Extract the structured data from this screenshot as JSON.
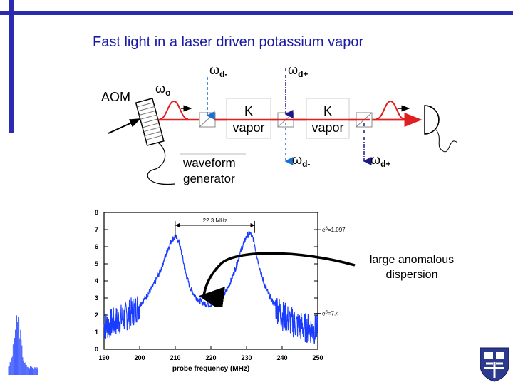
{
  "title": "Fast light in a laser driven potassium vapor",
  "diagram": {
    "aom_label": "AOM",
    "omega_o": "ω",
    "omega_o_sub": "o",
    "omega_d_minus": "ω",
    "omega_d_minus_sub": "d-",
    "omega_d_plus": "ω",
    "omega_d_plus_sub": "d+",
    "omega_d_minus_out": "ω",
    "omega_d_minus_out_sub": "d-",
    "omega_d_plus_out": "ω",
    "omega_d_plus_out_sub": "d+",
    "vapor_cell_1_line1": "K",
    "vapor_cell_1_line2": "vapor",
    "vapor_cell_2_line1": "K",
    "vapor_cell_2_line2": "vapor",
    "waveform_line1": "waveform",
    "waveform_line2": "generator",
    "colors": {
      "probe": "#e02020",
      "drive_minus": "#1e6fd0",
      "drive_plus": "#1a1a8c",
      "trace": "#1a3cff",
      "banner": "#2b2bb0"
    }
  },
  "chart_data": {
    "type": "line",
    "xlabel": "probe frequency (MHz)",
    "ylabel": "",
    "xlim": [
      190,
      250
    ],
    "ylim": [
      0,
      8
    ],
    "x_ticks": [
      "190",
      "200",
      "210",
      "220",
      "230",
      "240",
      "250"
    ],
    "y_ticks": [
      "0",
      "1",
      "2",
      "3",
      "4",
      "5",
      "6",
      "7",
      "8"
    ],
    "peak_separation_label": "22.3 MHz",
    "right_labels": [
      {
        "text": "e^{β}=1.097",
        "prefix": "e",
        "sup": "β",
        "suffix": "=1.097"
      },
      {
        "text": "e^{β}=7.4",
        "prefix": "e",
        "sup": "β",
        "suffix": "=7.4"
      }
    ],
    "series": [
      {
        "x": [
          190,
          192,
          194,
          196,
          198,
          200,
          202,
          204,
          205,
          206,
          207,
          208,
          209,
          210,
          211,
          212,
          213,
          214,
          215,
          216,
          217,
          218,
          219,
          220,
          221,
          222,
          223,
          224,
          225,
          226,
          227,
          228,
          229,
          230,
          231,
          232,
          233,
          234,
          235,
          236,
          237,
          238,
          239,
          240,
          242,
          244,
          246,
          248,
          250
        ],
        "values": [
          1.35,
          1.5,
          1.7,
          1.9,
          2.2,
          2.6,
          3.1,
          3.8,
          4.2,
          4.7,
          5.3,
          5.9,
          6.4,
          6.6,
          6.3,
          5.4,
          4.4,
          3.7,
          3.3,
          3.0,
          2.8,
          2.7,
          2.65,
          2.6,
          2.65,
          2.8,
          3.0,
          3.3,
          3.7,
          4.2,
          4.8,
          5.5,
          6.1,
          6.6,
          6.8,
          6.4,
          5.4,
          4.5,
          3.8,
          3.3,
          2.9,
          2.6,
          2.3,
          2.0,
          1.7,
          1.45,
          1.3,
          1.2,
          1.1
        ]
      }
    ]
  },
  "annotation": {
    "line1": "large anomalous",
    "line2": "dispersion"
  }
}
